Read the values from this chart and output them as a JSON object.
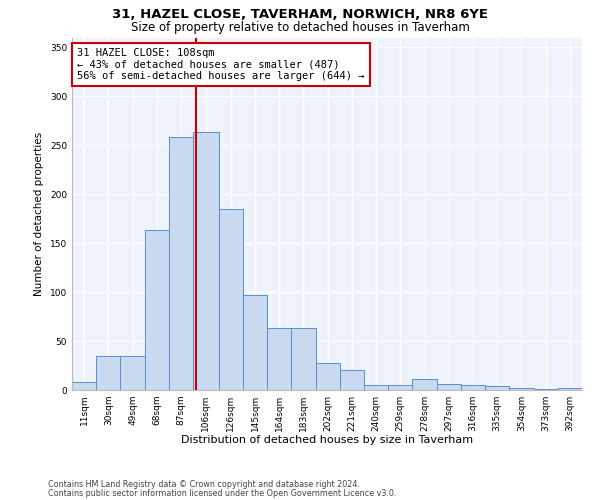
{
  "title1": "31, HAZEL CLOSE, TAVERHAM, NORWICH, NR8 6YE",
  "title2": "Size of property relative to detached houses in Taverham",
  "xlabel": "Distribution of detached houses by size in Taverham",
  "ylabel": "Number of detached properties",
  "bin_labels": [
    "11sqm",
    "30sqm",
    "49sqm",
    "68sqm",
    "87sqm",
    "106sqm",
    "126sqm",
    "145sqm",
    "164sqm",
    "183sqm",
    "202sqm",
    "221sqm",
    "240sqm",
    "259sqm",
    "278sqm",
    "297sqm",
    "316sqm",
    "335sqm",
    "354sqm",
    "373sqm",
    "392sqm"
  ],
  "bar_heights": [
    8,
    35,
    35,
    163,
    258,
    263,
    185,
    97,
    63,
    63,
    28,
    20,
    5,
    5,
    11,
    6,
    5,
    4,
    2,
    1,
    2
  ],
  "bin_edges": [
    11,
    30,
    49,
    68,
    87,
    106,
    126,
    145,
    164,
    183,
    202,
    221,
    240,
    259,
    278,
    297,
    316,
    335,
    354,
    373,
    392,
    411
  ],
  "bar_color": "#c9d9ef",
  "bar_edge_color": "#5b8fc9",
  "vline_x": 108,
  "vline_color": "#cc0000",
  "annotation_line1": "31 HAZEL CLOSE: 108sqm",
  "annotation_line2": "← 43% of detached houses are smaller (487)",
  "annotation_line3": "56% of semi-detached houses are larger (644) →",
  "annotation_box_color": "white",
  "annotation_box_edge_color": "#cc0000",
  "ylim": [
    0,
    360
  ],
  "yticks": [
    0,
    50,
    100,
    150,
    200,
    250,
    300,
    350
  ],
  "background_color": "#eef2fa",
  "grid_color": "white",
  "footnote1": "Contains HM Land Registry data © Crown copyright and database right 2024.",
  "footnote2": "Contains public sector information licensed under the Open Government Licence v3.0.",
  "title1_fontsize": 9.5,
  "title2_fontsize": 8.5,
  "xlabel_fontsize": 8,
  "ylabel_fontsize": 7.5,
  "annotation_fontsize": 7.5,
  "tick_fontsize": 6.5,
  "footnote_fontsize": 5.8
}
